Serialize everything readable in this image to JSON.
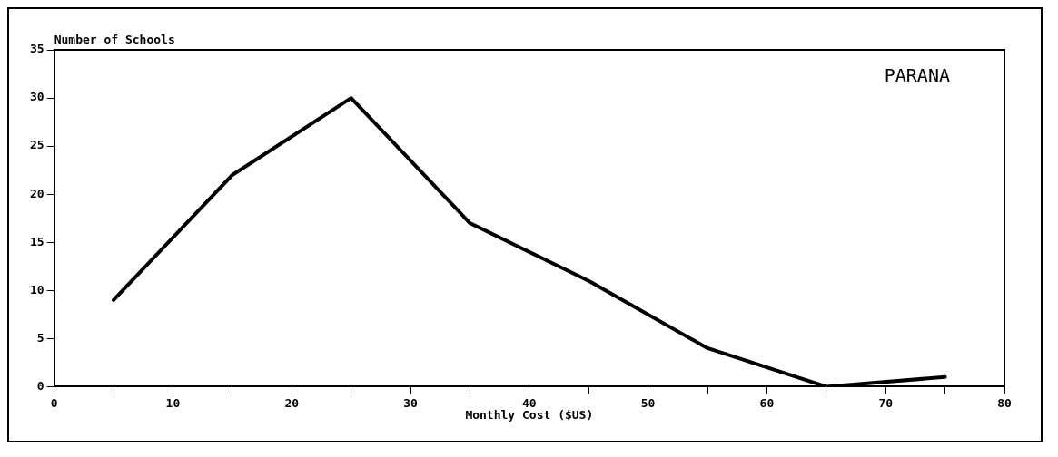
{
  "chart_data": {
    "type": "line",
    "xlabel": "Monthly Cost ($US)",
    "ylabel": "Number of Schools",
    "annotations": [
      "PARANA"
    ],
    "x": [
      5,
      15,
      25,
      35,
      45,
      55,
      65,
      75
    ],
    "series": [
      {
        "color": "#000000",
        "values": [
          9,
          22,
          30,
          17,
          11,
          4,
          0,
          1
        ]
      }
    ],
    "xlim": [
      0,
      80
    ],
    "xticks": [
      0,
      {
        "value": 5,
        "label": null
      },
      10,
      {
        "value": 15,
        "label": null
      },
      20,
      {
        "value": 25,
        "label": null
      },
      30,
      {
        "value": 35,
        "label": null
      },
      40,
      {
        "value": 45,
        "label": null
      },
      50,
      {
        "value": 55,
        "label": null
      },
      60,
      {
        "value": 65,
        "label": null
      },
      70,
      {
        "value": 75,
        "label": null
      },
      80
    ],
    "ylim": [
      0,
      35
    ],
    "yticks": [
      0,
      5,
      10,
      15,
      20,
      25,
      30,
      35
    ],
    "grid": false,
    "legend": false,
    "marker": "none",
    "line_style": "solid"
  }
}
